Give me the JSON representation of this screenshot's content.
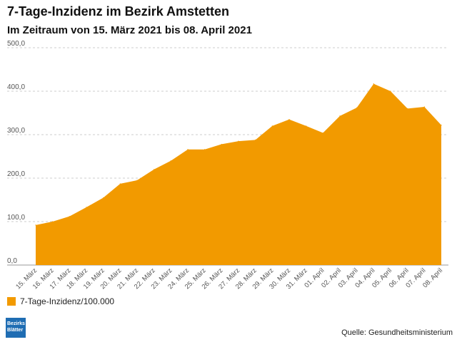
{
  "header": {
    "title": "7-Tage-Inzidenz im Bezirk Amstetten",
    "subtitle": "Im Zeitraum von 15. März 2021 bis 08. April 2021"
  },
  "colors": {
    "area": "#f29a00",
    "grid": "#cccccc",
    "axis": "#999999"
  },
  "chart_data": {
    "type": "area",
    "title": "7-Tage-Inzidenz im Bezirk Amstetten",
    "subtitle": "Im Zeitraum von 15. März 2021 bis 08. April 2021",
    "xlabel": "",
    "ylabel": "",
    "ylim": [
      0,
      500
    ],
    "yticks": [
      "0,0",
      "100,0",
      "200,0",
      "300,0",
      "400,0",
      "500,0"
    ],
    "grid": true,
    "legend_position": "bottom-left",
    "categories": [
      "15. März",
      "16. März",
      "17. März",
      "18. März",
      "19. März",
      "20. März",
      "21. März",
      "22. März",
      "23. März",
      "24. März",
      "25. März",
      "26. März",
      "27. März",
      "28. März",
      "29. März",
      "30. März",
      "31. März",
      "01. April",
      "02. April",
      "03. April",
      "04. April",
      "05. April",
      "06. April",
      "07. April",
      "08. April"
    ],
    "series": [
      {
        "name": "7-Tage-Inzidenz/100.000",
        "values": [
          92,
          100,
          112,
          133,
          155,
          187,
          195,
          220,
          240,
          266,
          266,
          278,
          285,
          288,
          320,
          335,
          320,
          304,
          343,
          362,
          417,
          400,
          360,
          364,
          322
        ]
      }
    ]
  },
  "legend": {
    "label": "7-Tage-Inzidenz/100.000"
  },
  "logo": {
    "line1": "Bezirks",
    "line2": "Blätter"
  },
  "footer": {
    "source": "Quelle: Gesundheitsministerium"
  }
}
